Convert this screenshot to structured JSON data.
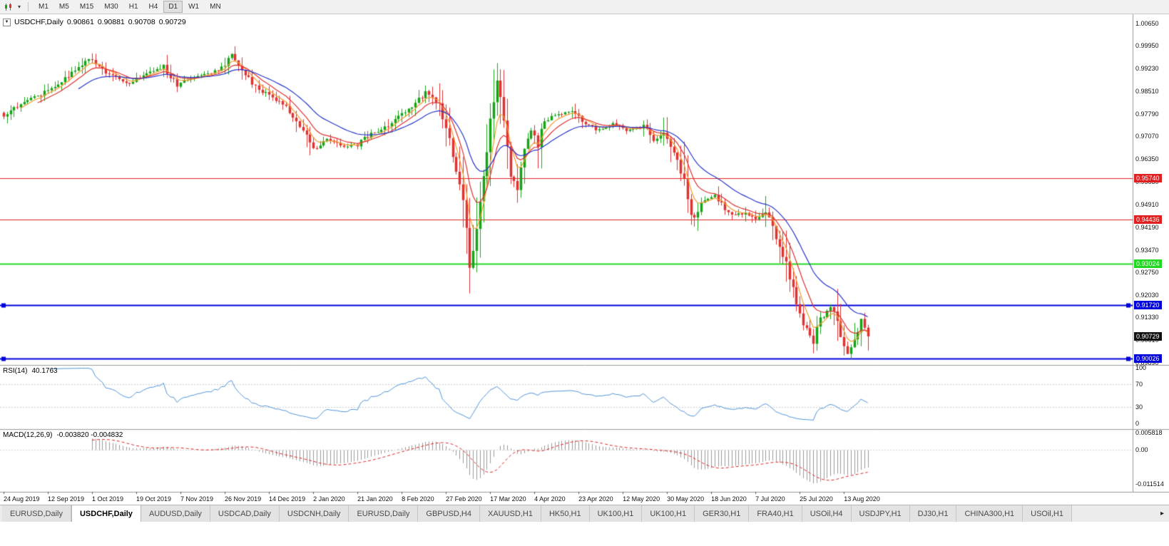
{
  "toolbar": {
    "timeframes": [
      {
        "label": "M1",
        "active": false
      },
      {
        "label": "M5",
        "active": false
      },
      {
        "label": "M15",
        "active": false
      },
      {
        "label": "M30",
        "active": false
      },
      {
        "label": "H1",
        "active": false
      },
      {
        "label": "H4",
        "active": false
      },
      {
        "label": "D1",
        "active": true
      },
      {
        "label": "W1",
        "active": false
      },
      {
        "label": "MN",
        "active": false
      }
    ]
  },
  "chart_data": {
    "type": "candlestick",
    "symbol_period": "USDCHF,Daily",
    "ohlc": {
      "open": "0.90861",
      "high": "0.90881",
      "low": "0.90708",
      "close": "0.90729"
    },
    "colors": {
      "up": "#17a317",
      "down": "#e03131",
      "ma_fast": "#f29b2d",
      "ma_mid": "#e03131",
      "ma_slow": "#2737cc",
      "rsi_line": "#4f93d8",
      "macd_hist": "#9a9a9a",
      "macd_signal": "#e02020",
      "price_badge": "#111111",
      "level_dotted": "#c8c8c8"
    },
    "y_axis": {
      "range": [
        0.89822,
        1.00944
      ],
      "ticks": [
        "1.00650",
        "0.99950",
        "0.99230",
        "0.98510",
        "0.97790",
        "0.97070",
        "0.96350",
        "0.95630",
        "0.94910",
        "0.94190",
        "0.93470",
        "0.92750",
        "0.92030",
        "0.91330",
        "0.90610",
        "0.89890"
      ]
    },
    "x_axis_dates": [
      "24 Aug 2019",
      "12 Sep 2019",
      "1 Oct 2019",
      "19 Oct 2019",
      "7 Nov 2019",
      "26 Nov 2019",
      "14 Dec 2019",
      "2 Jan 2020",
      "21 Jan 2020",
      "8 Feb 2020",
      "27 Feb 2020",
      "17 Mar 2020",
      "4 Apr 2020",
      "23 Apr 2020",
      "12 May 2020",
      "30 May 2020",
      "18 Jun 2020",
      "7 Jul 2020",
      "25 Jul 2020",
      "13 Aug 2020"
    ],
    "hlines": [
      {
        "price": 0.9574,
        "label": "0.95740",
        "color": "#e02020",
        "width": 1,
        "handles": false
      },
      {
        "price": 0.94436,
        "label": "0.94436",
        "color": "#e02020",
        "width": 1,
        "handles": false
      },
      {
        "price": 0.93024,
        "label": "0.93024",
        "color": "#22d822",
        "width": 2,
        "handles": false
      },
      {
        "price": 0.9172,
        "label": "0.91720",
        "color": "#0000dd",
        "width": 2,
        "handles": true
      },
      {
        "price": 0.90026,
        "label": "0.90026",
        "color": "#0000dd",
        "width": 2,
        "handles": true
      }
    ],
    "current_price": {
      "value": 0.90729,
      "label": "0.90729"
    },
    "candles": {
      "count": 255,
      "tick_step": 13,
      "seed": 7,
      "close_anchors": [
        [
          0,
          0.977
        ],
        [
          5,
          0.9812
        ],
        [
          11,
          0.984
        ],
        [
          18,
          0.9892
        ],
        [
          25,
          0.9952
        ],
        [
          30,
          0.9912
        ],
        [
          36,
          0.9872
        ],
        [
          41,
          0.9902
        ],
        [
          47,
          0.9926
        ],
        [
          51,
          0.9868
        ],
        [
          56,
          0.9896
        ],
        [
          60,
          0.9906
        ],
        [
          64,
          0.9922
        ],
        [
          67,
          0.9962
        ],
        [
          71,
          0.9902
        ],
        [
          75,
          0.9856
        ],
        [
          80,
          0.9826
        ],
        [
          84,
          0.979
        ],
        [
          88,
          0.9722
        ],
        [
          91,
          0.9666
        ],
        [
          95,
          0.9696
        ],
        [
          100,
          0.9676
        ],
        [
          104,
          0.9682
        ],
        [
          108,
          0.9716
        ],
        [
          112,
          0.9732
        ],
        [
          116,
          0.977
        ],
        [
          121,
          0.9812
        ],
        [
          124,
          0.9846
        ],
        [
          128,
          0.9806
        ],
        [
          131,
          0.97
        ],
        [
          134,
          0.956
        ],
        [
          136,
          0.943
        ],
        [
          137,
          0.93
        ],
        [
          138,
          0.935
        ],
        [
          140,
          0.95
        ],
        [
          141,
          0.958
        ],
        [
          143,
          0.975
        ],
        [
          145,
          0.9876
        ],
        [
          146,
          0.983
        ],
        [
          148,
          0.968
        ],
        [
          149,
          0.958
        ],
        [
          151,
          0.9546
        ],
        [
          153,
          0.966
        ],
        [
          155,
          0.9716
        ],
        [
          157,
          0.9686
        ],
        [
          159,
          0.9756
        ],
        [
          162,
          0.9776
        ],
        [
          167,
          0.9786
        ],
        [
          171,
          0.9746
        ],
        [
          175,
          0.9726
        ],
        [
          179,
          0.9746
        ],
        [
          183,
          0.9726
        ],
        [
          188,
          0.9736
        ],
        [
          191,
          0.9696
        ],
        [
          194,
          0.9716
        ],
        [
          197,
          0.9646
        ],
        [
          200,
          0.9576
        ],
        [
          202,
          0.945
        ],
        [
          203,
          0.9436
        ],
        [
          205,
          0.9496
        ],
        [
          209,
          0.9516
        ],
        [
          212,
          0.9476
        ],
        [
          215,
          0.9456
        ],
        [
          218,
          0.9466
        ],
        [
          221,
          0.944
        ],
        [
          224,
          0.9466
        ],
        [
          227,
          0.9386
        ],
        [
          230,
          0.9306
        ],
        [
          232,
          0.922
        ],
        [
          234,
          0.9136
        ],
        [
          236,
          0.9096
        ],
        [
          238,
          0.906
        ],
        [
          240,
          0.9126
        ],
        [
          243,
          0.9166
        ],
        [
          245,
          0.9116
        ],
        [
          246,
          0.9076
        ],
        [
          248,
          0.9016
        ],
        [
          250,
          0.9066
        ],
        [
          252,
          0.9116
        ],
        [
          254,
          0.90729
        ]
      ]
    },
    "moving_averages": [
      {
        "type": "ema",
        "period": 5,
        "color_key": "ma_fast"
      },
      {
        "type": "ema",
        "period": 10,
        "color_key": "ma_mid"
      },
      {
        "type": "ema",
        "period": 22,
        "color_key": "ma_slow"
      }
    ],
    "rsi": {
      "name": "RSI(14)",
      "value": "40.1763",
      "period": 14,
      "range": [
        0,
        100
      ],
      "ticks": [
        "100",
        "70",
        "30",
        "0"
      ],
      "tick_values": [
        100,
        70,
        30,
        0
      ],
      "levels": [
        70,
        30
      ]
    },
    "macd": {
      "name": "MACD(12,26,9)",
      "values": "-0.003820 -0.004832",
      "fast": 12,
      "slow": 26,
      "signal": 9,
      "range": [
        -0.011514,
        0.005818
      ],
      "ticks": [
        "0.005818",
        "0.00",
        "-0.011514"
      ],
      "tick_values": [
        0.005818,
        0,
        -0.011514
      ]
    }
  },
  "tabs": {
    "items": [
      {
        "label": "EURUSD,Daily",
        "active": false
      },
      {
        "label": "USDCHF,Daily",
        "active": true
      },
      {
        "label": "AUDUSD,Daily",
        "active": false
      },
      {
        "label": "USDCAD,Daily",
        "active": false
      },
      {
        "label": "USDCNH,Daily",
        "active": false
      },
      {
        "label": "EURUSD,Daily",
        "active": false
      },
      {
        "label": "GBPUSD,H4",
        "active": false
      },
      {
        "label": "XAUUSD,H1",
        "active": false
      },
      {
        "label": "HK50,H1",
        "active": false
      },
      {
        "label": "UK100,H1",
        "active": false
      },
      {
        "label": "UK100,H1",
        "active": false
      },
      {
        "label": "GER30,H1",
        "active": false
      },
      {
        "label": "FRA40,H1",
        "active": false
      },
      {
        "label": "USOil,H4",
        "active": false
      },
      {
        "label": "USDJPY,H1",
        "active": false
      },
      {
        "label": "DJ30,H1",
        "active": false
      },
      {
        "label": "CHINA300,H1",
        "active": false
      },
      {
        "label": "USOil,H1",
        "active": false
      }
    ],
    "scroll_right": "▸"
  }
}
